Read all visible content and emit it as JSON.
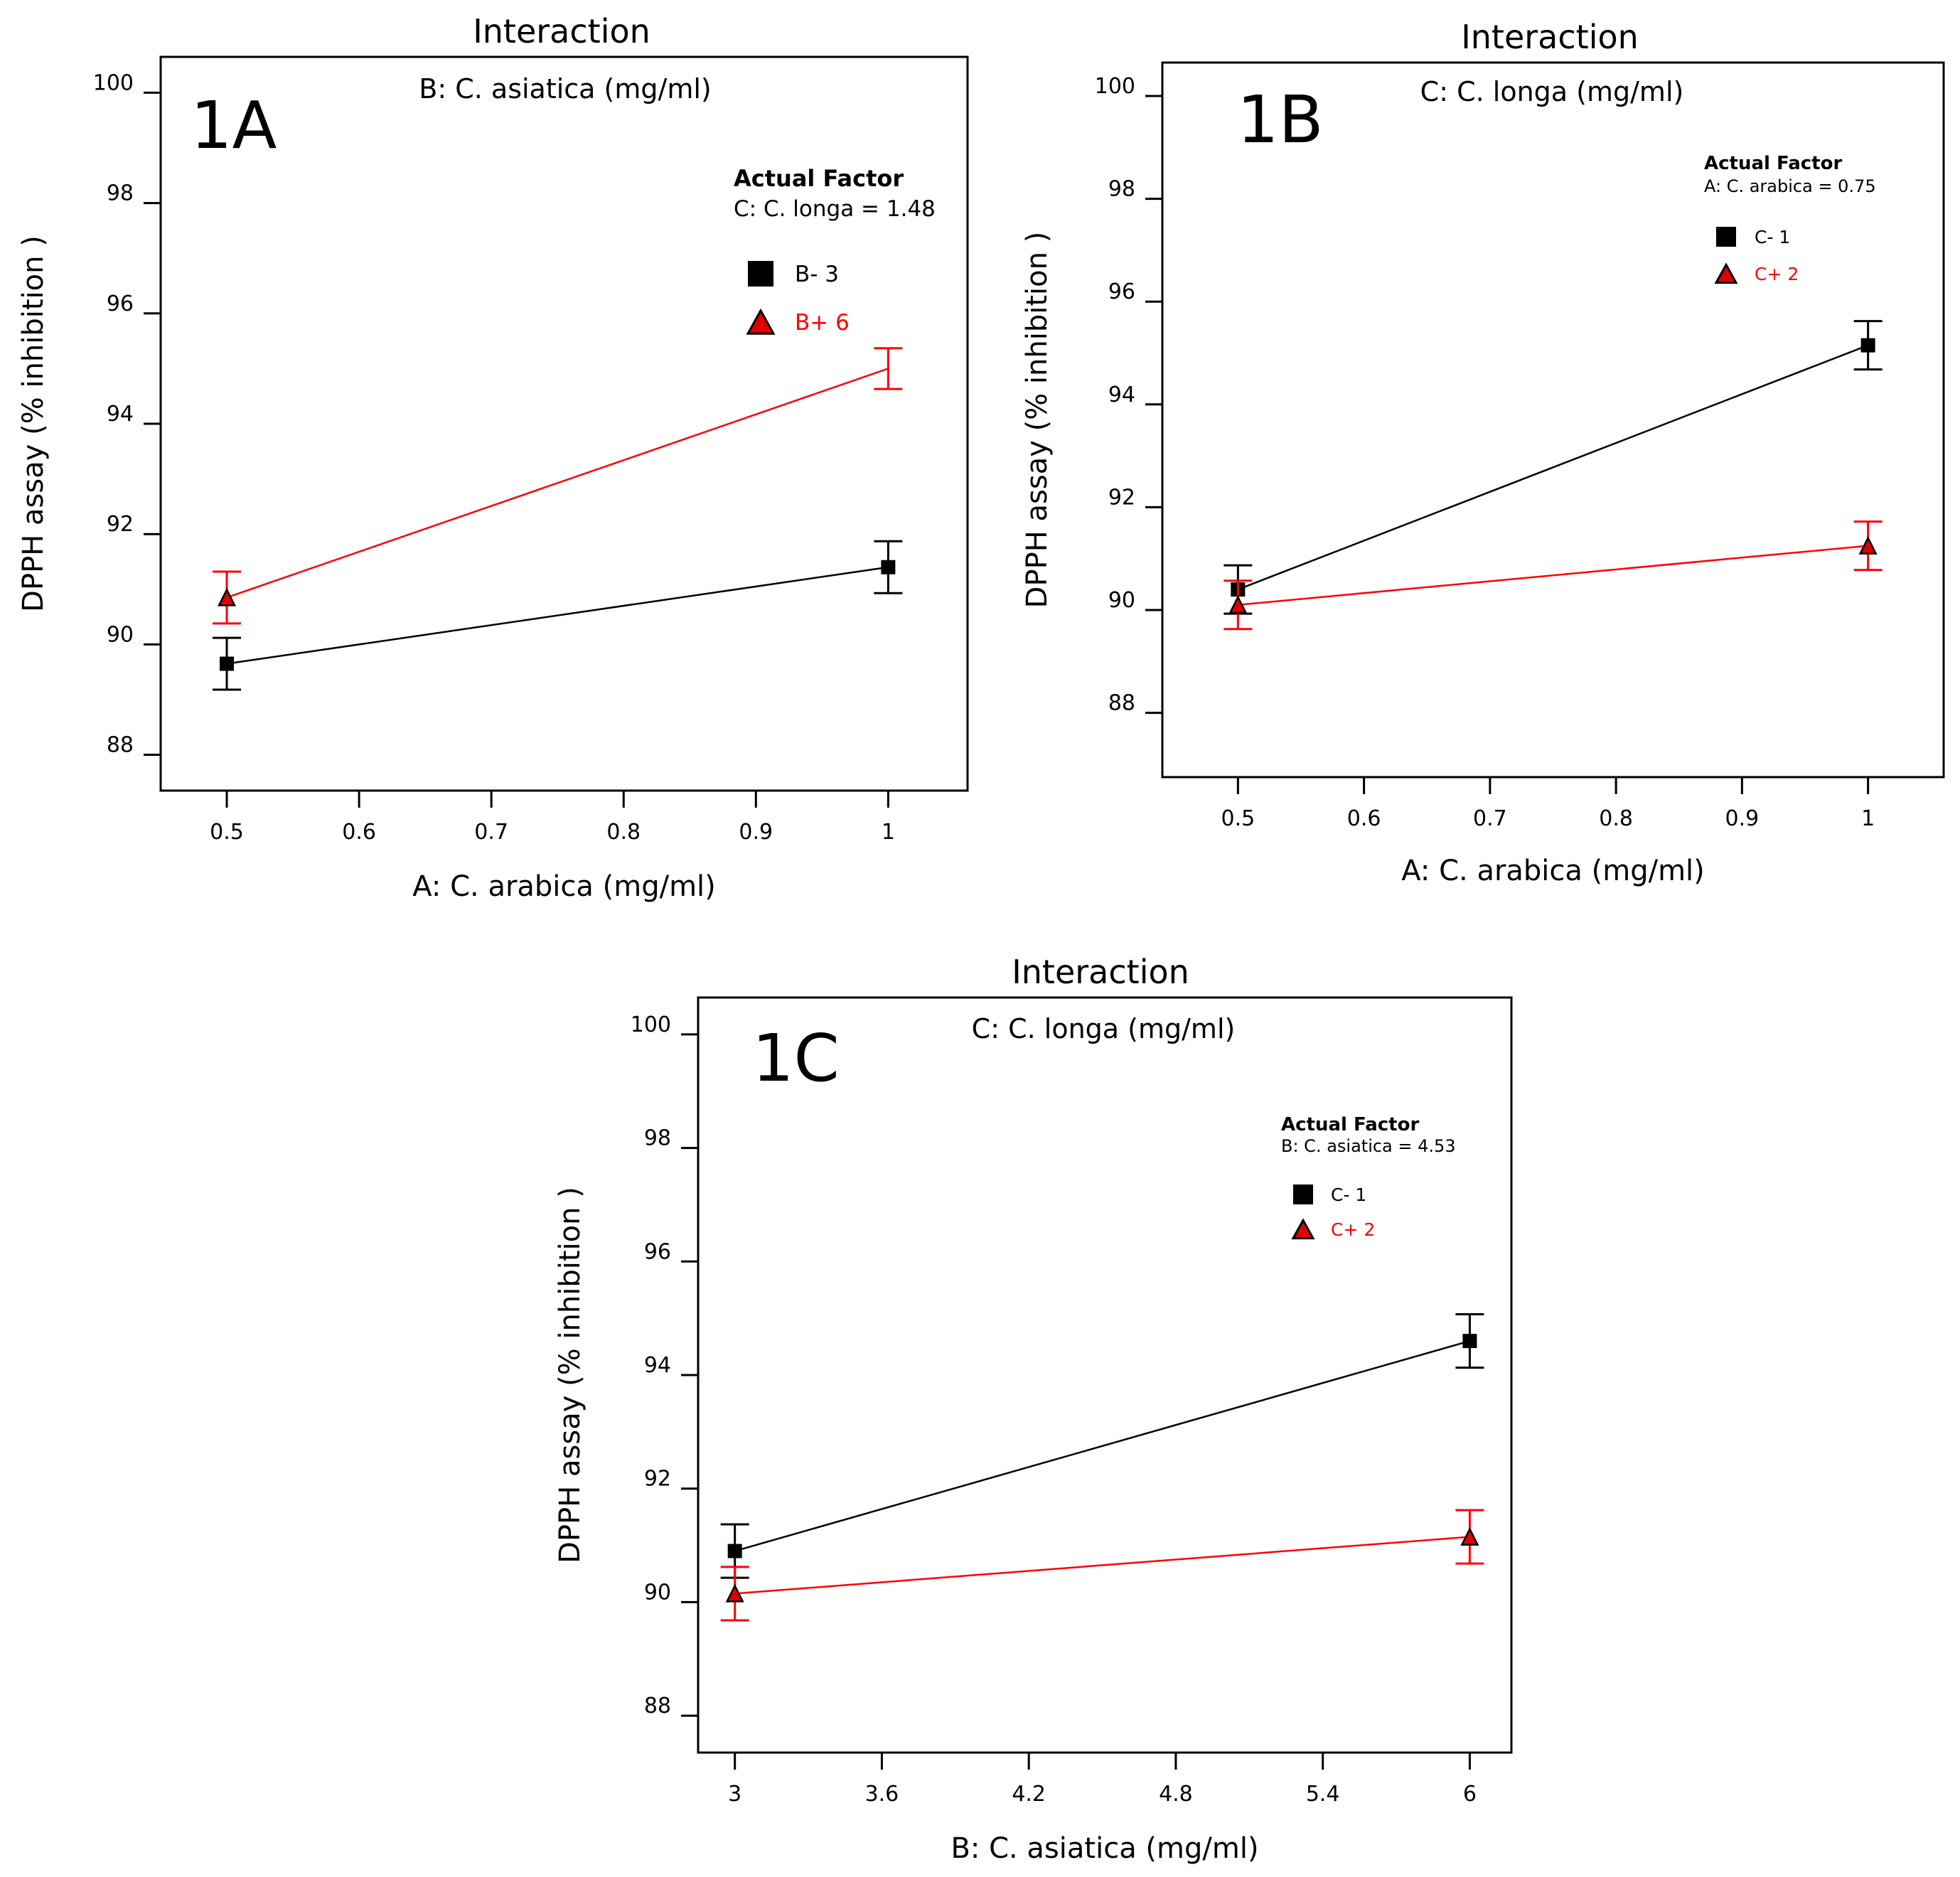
{
  "chart_data": [
    {
      "type": "line",
      "panel_label": "1A",
      "title": "Interaction",
      "subtitle": "B: C. asiatica  (mg/ml)",
      "xlabel": "A: C. arabica (mg/ml)",
      "ylabel": "DPPH assay (% inhibition )",
      "xlim": [
        0.45,
        1.06
      ],
      "ylim": [
        87.35,
        100.65
      ],
      "xticks": [
        0.5,
        0.6,
        0.7,
        0.8,
        0.9,
        1
      ],
      "xtick_labels": [
        "0.5",
        "0.6",
        "0.7",
        "0.8",
        "0.9",
        "1"
      ],
      "yticks": [
        88,
        90,
        92,
        94,
        96,
        98,
        100
      ],
      "ytick_labels": [
        "88",
        "90",
        "92",
        "94",
        "96",
        "98",
        "100"
      ],
      "actual_factor": {
        "heading": "Actual Factor",
        "value": "C: C. longa = 1.48"
      },
      "series": [
        {
          "name": "B- 3",
          "color": "#000000",
          "marker": "square",
          "x": [
            0.5,
            1
          ],
          "y": [
            89.65,
            91.4
          ],
          "err": [
            0.47,
            0.47
          ]
        },
        {
          "name": "B+ 6",
          "color": "#ff0000",
          "marker": "triangle",
          "x": [
            0.5,
            1
          ],
          "y": [
            90.85,
            95.0
          ],
          "err": [
            0.47,
            0.37
          ]
        }
      ]
    },
    {
      "type": "line",
      "panel_label": "1B",
      "title": "Interaction",
      "subtitle": "C: C. longa (mg/ml)",
      "xlabel": "A: C. arabica (mg/ml)",
      "ylabel": "DPPH assay (% inhibition )",
      "xlim": [
        0.44,
        1.06
      ],
      "ylim": [
        86.75,
        100.65
      ],
      "xticks": [
        0.5,
        0.6,
        0.7,
        0.8,
        0.9,
        1
      ],
      "xtick_labels": [
        "0.5",
        "0.6",
        "0.7",
        "0.8",
        "0.9",
        "1"
      ],
      "yticks": [
        88,
        90,
        92,
        94,
        96,
        98,
        100
      ],
      "ytick_labels": [
        "88",
        "90",
        "92",
        "94",
        "96",
        "98",
        "100"
      ],
      "actual_factor": {
        "heading": "Actual Factor",
        "value": "A: C. arabica = 0.75"
      },
      "series": [
        {
          "name": "C- 1",
          "color": "#000000",
          "marker": "square",
          "x": [
            0.5,
            1
          ],
          "y": [
            90.4,
            95.15
          ],
          "err": [
            0.47,
            0.47
          ]
        },
        {
          "name": "C+ 2",
          "color": "#ff0000",
          "marker": "triangle",
          "x": [
            0.5,
            1
          ],
          "y": [
            90.1,
            91.25
          ],
          "err": [
            0.47,
            0.47
          ]
        }
      ]
    },
    {
      "type": "line",
      "panel_label": "1C",
      "title": "Interaction",
      "subtitle": "C: C. longa (mg/ml)",
      "xlabel": "B: C. asiatica  (mg/ml)",
      "ylabel": "DPPH assay (% inhibition )",
      "xlim": [
        2.85,
        6.17
      ],
      "ylim": [
        87.35,
        100.65
      ],
      "xticks": [
        3,
        3.6,
        4.2,
        4.8,
        5.4,
        6
      ],
      "xtick_labels": [
        "3",
        "3.6",
        "4.2",
        "4.8",
        "5.4",
        "6"
      ],
      "yticks": [
        88,
        90,
        92,
        94,
        96,
        98,
        100
      ],
      "ytick_labels": [
        "88",
        "90",
        "92",
        "94",
        "96",
        "98",
        "100"
      ],
      "actual_factor": {
        "heading": "Actual Factor",
        "value": "B: C. asiatica = 4.53"
      },
      "series": [
        {
          "name": "C- 1",
          "color": "#000000",
          "marker": "square",
          "x": [
            3,
            6
          ],
          "y": [
            90.9,
            94.6
          ],
          "err": [
            0.47,
            0.47
          ]
        },
        {
          "name": "C+ 2",
          "color": "#ff0000",
          "marker": "triangle",
          "x": [
            3,
            6
          ],
          "y": [
            90.15,
            91.15
          ],
          "err": [
            0.47,
            0.47
          ]
        }
      ]
    }
  ]
}
